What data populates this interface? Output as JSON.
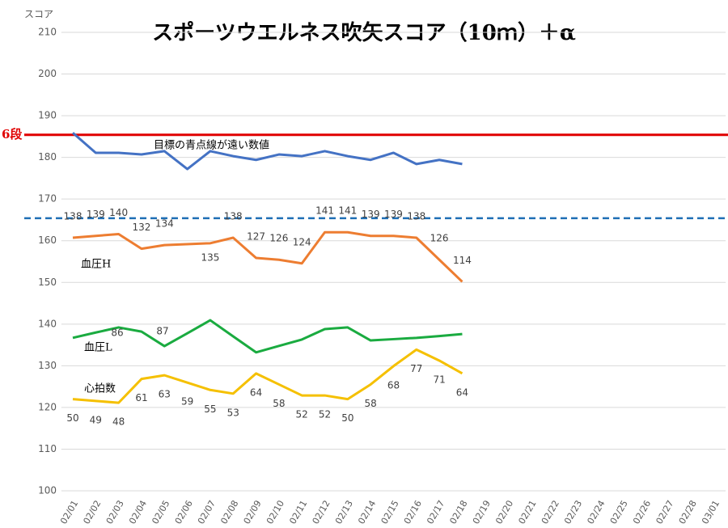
{
  "chart_data": {
    "type": "line",
    "title": "スポーツウエルネス吹矢スコア（10ｍ）＋α",
    "y_label": "スコア",
    "categories": [
      "02/01",
      "02/02",
      "02/03",
      "02/04",
      "02/05",
      "02/06",
      "02/07",
      "02/08",
      "02/09",
      "02/10",
      "02/11",
      "02/12",
      "02/13",
      "02/14",
      "02/15",
      "02/16",
      "02/17",
      "02/18",
      "02/19",
      "02/20",
      "02/21",
      "02/22",
      "02/23",
      "02/24",
      "02/25",
      "02/26",
      "02/27",
      "02/28",
      "03/01"
    ],
    "ylim": [
      100,
      210
    ],
    "yticks": [
      100,
      110,
      120,
      130,
      140,
      150,
      160,
      170,
      180,
      190,
      200,
      210
    ],
    "y2lim": [
      0,
      250
    ],
    "grid": true,
    "connect_gaps": true,
    "series": [
      {
        "color": "#4472c4",
        "values": [
          185.9,
          181.1,
          181.1,
          180.7,
          181.5,
          177.2,
          181.5,
          180.3,
          179.4,
          180.7,
          180.3,
          181.5,
          180.3,
          179.4,
          181.1,
          178.4,
          179.4,
          178.4,
          null,
          null,
          null,
          null,
          null,
          null,
          null,
          null,
          null,
          null,
          null
        ]
      },
      {
        "name": "血圧H",
        "axis": "y2",
        "color": "#ed7d31",
        "values": [
          138,
          139,
          140,
          132,
          134,
          null,
          135,
          138,
          127,
          126,
          124,
          141,
          141,
          139,
          139,
          138,
          126,
          114,
          null,
          null,
          null,
          null,
          null,
          null,
          null,
          null,
          null,
          null,
          null
        ],
        "show_labels": true
      },
      {
        "name": "血圧L",
        "axis": "y2",
        "color": "#1aab40",
        "values": [
          83.4,
          86.3,
          89.1,
          86.8,
          78.9,
          85.9,
          93,
          84.2,
          75.5,
          79,
          82.5,
          88.2,
          89.1,
          82,
          82.7,
          83.4,
          84.4,
          85.5,
          null,
          null,
          null,
          null,
          null,
          null,
          null,
          null,
          null,
          null,
          null
        ]
      },
      {
        "name": "心拍数",
        "axis": "y2",
        "color": "#f5c000",
        "values": [
          50,
          49,
          48,
          61,
          63,
          59,
          55,
          53,
          64,
          58,
          52,
          52,
          50,
          58,
          68,
          77,
          71,
          64,
          null,
          null,
          null,
          null,
          null,
          null,
          null,
          null,
          null,
          null,
          null
        ],
        "show_labels": true
      }
    ],
    "reference_lines": [
      {
        "value": 185.4,
        "label": "6段",
        "color": "#e00000",
        "style": "solid"
      },
      {
        "value": 165.4,
        "color": "#1f6fb5",
        "style": "dashed"
      }
    ],
    "annotations": [
      "目標の青点線が遠い数値",
      "86",
      "87"
    ]
  }
}
